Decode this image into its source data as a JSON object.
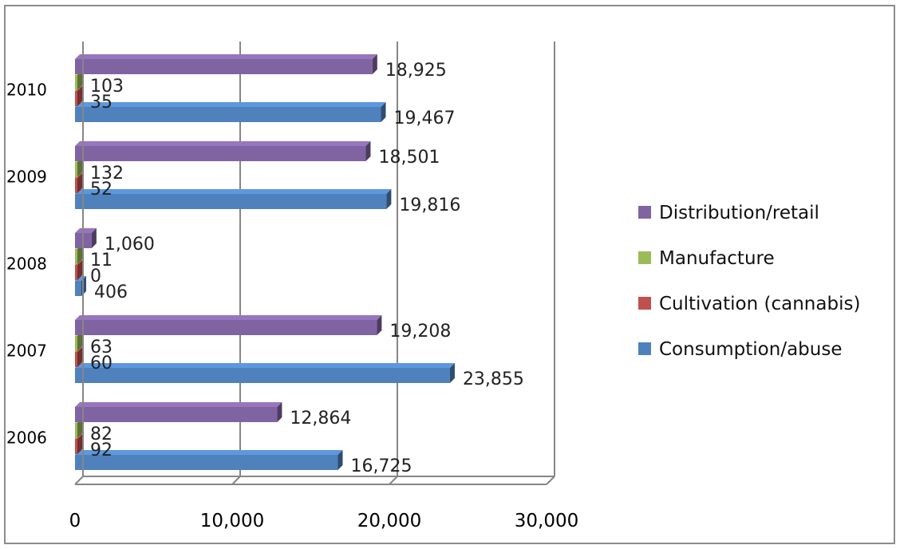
{
  "chart_data": {
    "type": "bar",
    "orientation": "horizontal",
    "style": "3d-clustered",
    "categories": [
      "2006",
      "2007",
      "2008",
      "2009",
      "2010"
    ],
    "series": [
      {
        "name": "Consumption/abuse",
        "color": "#4f81bd",
        "values": [
          16725,
          23855,
          406,
          19816,
          19467
        ],
        "labels": [
          "16,725",
          "23,855",
          "406",
          "19,816",
          "19,467"
        ]
      },
      {
        "name": "Cultivation (cannabis)",
        "color": "#c0504d",
        "values": [
          92,
          60,
          0,
          52,
          35
        ],
        "labels": [
          "92",
          "60",
          "0",
          "52",
          "35"
        ]
      },
      {
        "name": "Manufacture",
        "color": "#9bbb59",
        "values": [
          82,
          63,
          11,
          132,
          103
        ],
        "labels": [
          "82",
          "63",
          "11",
          "132",
          "103"
        ]
      },
      {
        "name": "Distribution/retail",
        "color": "#8064a2",
        "values": [
          12864,
          19208,
          1060,
          18501,
          18925
        ],
        "labels": [
          "12,864",
          "19,208",
          "1,060",
          "18,501",
          "18,925"
        ]
      }
    ],
    "xlim": [
      0,
      30000
    ],
    "x_ticks": [
      0,
      10000,
      20000,
      30000
    ],
    "x_tick_labels": [
      "0",
      "10,000",
      "20,000",
      "30,000"
    ],
    "title": "",
    "xlabel": "",
    "ylabel": "",
    "grid": "vertical",
    "legend_position": "right"
  }
}
